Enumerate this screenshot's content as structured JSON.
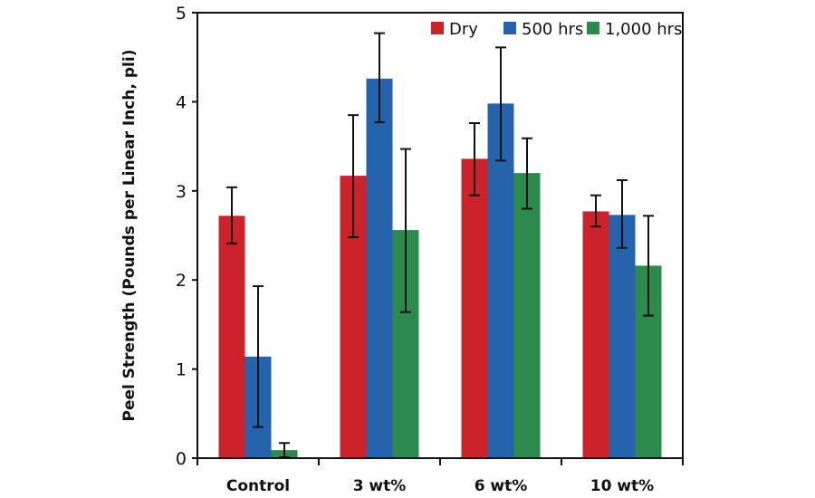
{
  "chart_data": {
    "type": "bar",
    "title": "",
    "xlabel": "",
    "ylabel": "Peel Strength (Pounds per Linear Inch, pli)",
    "ylim": [
      0,
      5
    ],
    "yticks": [
      "0",
      "1",
      "2",
      "3",
      "4",
      "5"
    ],
    "grid": false,
    "legend_position": "top-right",
    "categories": [
      "Control",
      "3 wt%",
      "6 wt%",
      "10 wt%"
    ],
    "series": [
      {
        "name": "Dry",
        "color": "#cc2229",
        "values": [
          2.72,
          3.17,
          3.36,
          2.77
        ],
        "error_high": [
          3.04,
          3.85,
          3.76,
          2.95
        ],
        "error_low": [
          2.41,
          2.48,
          2.95,
          2.6
        ]
      },
      {
        "name": "500 hrs",
        "color": "#2563ad",
        "values": [
          1.14,
          4.26,
          3.98,
          2.73
        ],
        "error_high": [
          1.93,
          4.77,
          4.61,
          3.12
        ],
        "error_low": [
          0.35,
          3.77,
          3.34,
          2.36
        ]
      },
      {
        "name": "1,000 hrs",
        "color": "#2b8a4c",
        "values": [
          0.09,
          2.56,
          3.2,
          2.16
        ],
        "error_high": [
          0.17,
          3.47,
          3.59,
          2.72
        ],
        "error_low": [
          0.01,
          1.64,
          2.8,
          1.6
        ]
      }
    ]
  }
}
